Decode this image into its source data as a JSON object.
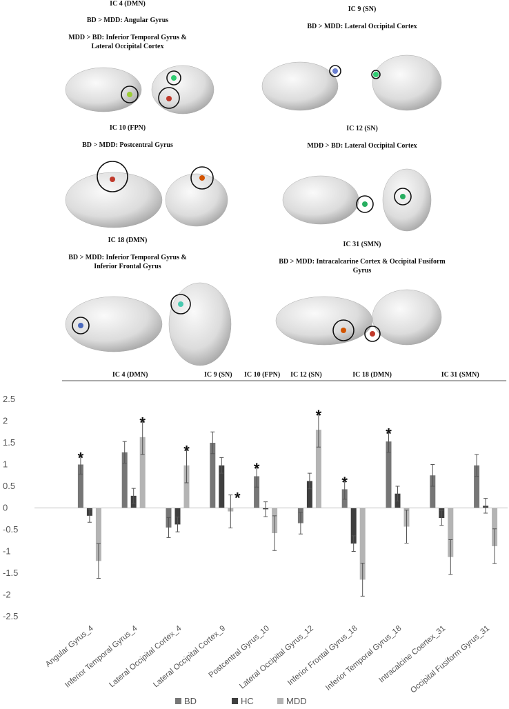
{
  "panels": [
    {
      "title": "IC 4 (DMN)",
      "lines": [
        "BD > MDD: Angular Gyrus",
        "MDD > BD: Inferior Temporal Gyrus &",
        "Lateral Occipital Cortex"
      ]
    },
    {
      "title": "IC 9 (SN)",
      "lines": [
        "BD > MDD: Lateral Occipital Cortex"
      ]
    },
    {
      "title": "IC 10 (FPN)",
      "lines": [
        "BD > MDD: Postcentral Gyrus"
      ]
    },
    {
      "title": "IC 12 (SN)",
      "lines": [
        "MDD > BD: Lateral Occipital Cortex"
      ]
    },
    {
      "title": "IC 18 (DMN)",
      "lines": [
        "BD > MDD: Inferior Temporal Gyrus &",
        "Inferior Frontal Gyrus"
      ]
    },
    {
      "title": "IC 31 (SMN)",
      "lines": [
        "BD > MDD: Intracalcarine Cortex & Occipital Fusiform",
        "Gyrus"
      ]
    }
  ],
  "chart_data": {
    "type": "bar",
    "categories": [
      "Angular Gyrus_4",
      "Inferior Temporal Gyrus_4",
      "Lateral Occipital Cortex_4",
      "Lateral Occipital Cortex_9",
      "Postcentral Gyrus_10",
      "Lateral Occipital Gyrus_12",
      "Inferior Frontal Gyrus_18",
      "Inferior Temporal Gyrus_18",
      "Intracalcine Coertex_31",
      "Occipital Fusiform Gyrus_31"
    ],
    "series": [
      {
        "name": "BD",
        "color": "#767676",
        "values": [
          1.0,
          1.28,
          -0.45,
          1.5,
          0.73,
          -0.35,
          0.43,
          1.53,
          0.75,
          0.98
        ],
        "errors": [
          0.22,
          0.25,
          0.23,
          0.25,
          0.25,
          0.25,
          0.23,
          0.25,
          0.25,
          0.25
        ]
      },
      {
        "name": "HC",
        "color": "#3f3f3f",
        "values": [
          -0.18,
          0.28,
          -0.38,
          0.98,
          -0.03,
          0.62,
          -0.82,
          0.33,
          -0.23,
          0.05
        ],
        "errors": [
          0.15,
          0.17,
          0.17,
          0.18,
          0.17,
          0.18,
          0.18,
          0.17,
          0.17,
          0.17
        ]
      },
      {
        "name": "MDD",
        "color": "#b4b4b4",
        "values": [
          -1.22,
          1.63,
          0.98,
          -0.08,
          -0.58,
          1.8,
          -1.65,
          -0.43,
          -1.13,
          -0.88
        ],
        "errors": [
          0.4,
          0.4,
          0.4,
          0.38,
          0.4,
          0.4,
          0.38,
          0.38,
          0.4,
          0.4
        ]
      }
    ],
    "groups": [
      {
        "label": "IC 4 (DMN)",
        "members": [
          "Angular Gyrus_4",
          "Lateral Occipital Cortex_4"
        ]
      },
      {
        "label": "IC 9 (SN)",
        "members": [
          "Lateral Occipital Cortex_9",
          "Lateral Occipital Cortex_9"
        ]
      },
      {
        "label": "IC 10 (FPN)",
        "members": [
          "Postcentral Gyrus_10",
          "Postcentral Gyrus_10"
        ]
      },
      {
        "label": "IC 12 (SN)",
        "members": [
          "Lateral Occipital Gyrus_12",
          "Lateral Occipital Gyrus_12"
        ]
      },
      {
        "label": "IC 18 (DMN)",
        "members": [
          "Inferior Frontal Gyrus_18",
          "Inferior Temporal Gyrus_18"
        ]
      },
      {
        "label": "IC 31 (SMN)",
        "members": [
          "Intracalcine Coertex_31",
          "Occipital Fusiform Gyrus_31"
        ]
      }
    ],
    "annotations": [
      {
        "text": "*",
        "category": "Angular Gyrus_4",
        "series": "BD"
      },
      {
        "text": "*",
        "category": "Inferior Temporal Gyrus_4",
        "series": "MDD"
      },
      {
        "text": "*",
        "category": "Lateral Occipital Cortex_4",
        "series": "MDD"
      },
      {
        "text": "*",
        "category": "Lateral Occipital Cortex_9",
        "series": "MDD"
      },
      {
        "text": "*",
        "category": "Postcentral Gyrus_10",
        "series": "BD"
      },
      {
        "text": "*",
        "category": "Lateral Occipital Gyrus_12",
        "series": "MDD"
      },
      {
        "text": "*",
        "category": "Inferior Frontal Gyrus_18",
        "series": "BD"
      },
      {
        "text": "*",
        "category": "Inferior Temporal Gyrus_18",
        "series": "BD"
      }
    ],
    "ylim": [
      -2.5,
      2.5
    ],
    "yticks": [
      2.5,
      2,
      1.5,
      1,
      0.5,
      0,
      -0.5,
      -1,
      -1.5,
      -2,
      -2.5
    ],
    "grid": false,
    "legend": "bottom"
  }
}
